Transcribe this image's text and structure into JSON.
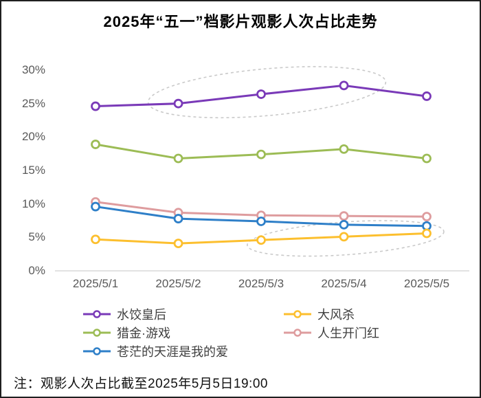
{
  "title": "2025年“五一”档影片观影人次占比走势",
  "note": "注：观影人次占比截至2025年5月5日19:00",
  "chart_data": {
    "type": "line",
    "title": "2025年“五一”档影片观影人次占比走势",
    "categories": [
      "2025/5/1",
      "2025/5/2",
      "2025/5/3",
      "2025/5/4",
      "2025/5/5"
    ],
    "ylim": [
      0,
      30
    ],
    "y_unit": "%",
    "grid": false,
    "legend_position": "bottom",
    "y_ticks": [
      {
        "label": "30%",
        "value": 30
      },
      {
        "label": "25%",
        "value": 25
      },
      {
        "label": "20%",
        "value": 20
      },
      {
        "label": "15%",
        "value": 15
      },
      {
        "label": "10%",
        "value": 10
      },
      {
        "label": "5%",
        "value": 5
      },
      {
        "label": "0%",
        "value": 0
      }
    ],
    "series": [
      {
        "name": "水饺皇后",
        "color": "#7A3AB8",
        "values": [
          24.6,
          25.0,
          26.4,
          27.7,
          26.1
        ]
      },
      {
        "name": "猎金·游戏",
        "color": "#9CBC55",
        "values": [
          18.9,
          16.8,
          17.4,
          18.2,
          16.8
        ]
      },
      {
        "name": "人生开门红",
        "color": "#DE9C9E",
        "values": [
          10.3,
          8.7,
          8.3,
          8.2,
          8.1
        ]
      },
      {
        "name": "苍茫的天涯是我的爱",
        "color": "#2E7FC8",
        "values": [
          9.6,
          7.8,
          7.4,
          6.9,
          6.7
        ]
      },
      {
        "name": "大风杀",
        "color": "#FCBF2E",
        "values": [
          4.7,
          4.1,
          4.6,
          5.1,
          5.6
        ]
      }
    ],
    "annotations": [
      {
        "type": "ellipse",
        "highlights": "水饺皇后",
        "x_index": 2.07,
        "y_pct": 26.7,
        "rx_index": 1.44,
        "ry_pct": 3.5,
        "rotate_deg": -5,
        "style": "dashed",
        "color": "#C9C9C9"
      },
      {
        "type": "ellipse",
        "highlights": "大风杀",
        "x_index": 3.02,
        "y_pct": 4.85,
        "rx_index": 1.19,
        "ry_pct": 2.45,
        "rotate_deg": -4,
        "style": "dashed",
        "color": "#C9C9C9"
      }
    ]
  },
  "legend": {
    "columns": [
      [
        "水饺皇后",
        "猎金·游戏",
        "苍茫的天涯是我的爱"
      ],
      [
        "大风杀",
        "人生开门红"
      ]
    ]
  }
}
